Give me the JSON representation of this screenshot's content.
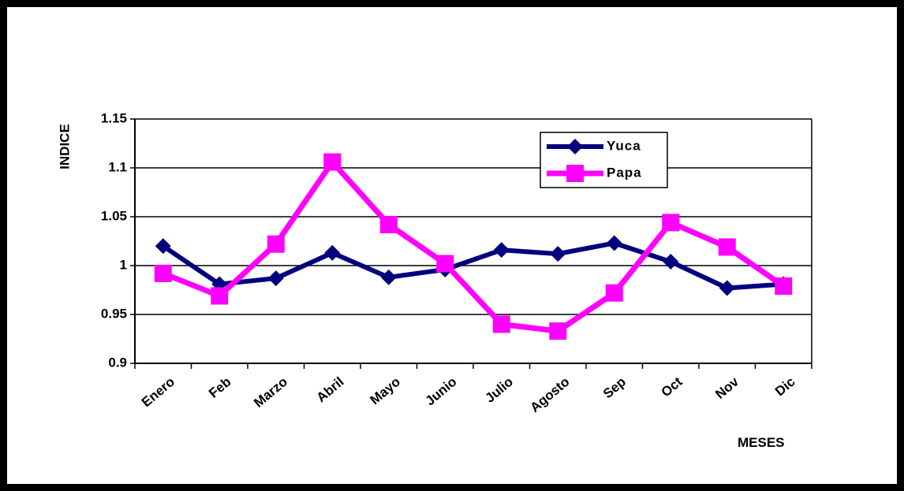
{
  "chart_data": {
    "type": "line",
    "title": "",
    "xlabel": "MESES",
    "ylabel": "INDICE",
    "categories": [
      "Enero",
      "Feb",
      "Marzo",
      "Abril",
      "Mayo",
      "Junio",
      "Julio",
      "Agosto",
      "Sep",
      "Oct",
      "Nov",
      "Dic"
    ],
    "ylim": [
      0.9,
      1.15
    ],
    "yticks": [
      "0.9",
      "0.95",
      "1",
      "1.05",
      "1.1",
      "1.15"
    ],
    "grid": true,
    "legend_position": "top-right",
    "series": [
      {
        "name": "Yuca",
        "color": "#00007F",
        "marker": "diamond",
        "values": [
          1.02,
          0.981,
          0.987,
          1.013,
          0.988,
          0.996,
          1.016,
          1.012,
          1.023,
          1.004,
          0.977,
          0.981
        ]
      },
      {
        "name": "Papa",
        "color": "#FF00FF",
        "marker": "square",
        "values": [
          0.992,
          0.969,
          1.022,
          1.106,
          1.042,
          1.002,
          0.94,
          0.933,
          0.972,
          1.044,
          1.019,
          0.979
        ]
      }
    ]
  }
}
